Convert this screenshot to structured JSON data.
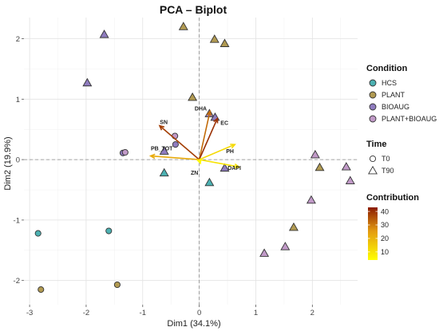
{
  "chart_data": {
    "type": "scatter",
    "title": "PCA – Biplot",
    "xlabel": "Dim1 (34.1%)",
    "ylabel": "Dim2 (19.9%)",
    "xlim": [
      -3.1,
      2.8
    ],
    "ylim": [
      -2.4,
      2.35
    ],
    "x_ticks": [
      "-3",
      "-2",
      "-1",
      "0",
      "1",
      "2"
    ],
    "y_ticks": [
      "-2",
      "-1",
      "0",
      "1",
      "2"
    ],
    "x_tick_values": [
      -3,
      -2,
      -1,
      0,
      1,
      2
    ],
    "y_tick_values": [
      -2,
      -1,
      0,
      1,
      2
    ],
    "grid": true,
    "legend_placement": "right",
    "condition_legend": {
      "title": "Condition",
      "items": [
        {
          "label": "HCS",
          "color": "#4cb1b2"
        },
        {
          "label": "PLANT",
          "color": "#b19a52"
        },
        {
          "label": "BIOAUG",
          "color": "#8f7cbf"
        },
        {
          "label": "PLANT+BIOAUG",
          "color": "#c19ac8"
        }
      ]
    },
    "time_legend": {
      "title": "Time",
      "items": [
        {
          "label": "T0",
          "shape": "circle"
        },
        {
          "label": "T90",
          "shape": "triangle"
        }
      ]
    },
    "contribution_legend": {
      "title": "Contribution",
      "ticks": [
        "10",
        "20",
        "30",
        "40"
      ],
      "tick_values": [
        10,
        20,
        30,
        40
      ],
      "range": [
        4,
        43
      ],
      "low_color": "#ffff00",
      "mid_color": "#e39b10",
      "high_color": "#8b1a00"
    },
    "points": [
      {
        "x": -2.85,
        "y": -1.22,
        "condition": "HCS",
        "time": "T0"
      },
      {
        "x": -1.6,
        "y": -1.18,
        "condition": "HCS",
        "time": "T0"
      },
      {
        "x": -0.62,
        "y": -0.22,
        "condition": "HCS",
        "time": "T90"
      },
      {
        "x": 0.18,
        "y": -0.38,
        "condition": "HCS",
        "time": "T90"
      },
      {
        "x": -2.8,
        "y": -2.15,
        "condition": "PLANT",
        "time": "T0"
      },
      {
        "x": -1.45,
        "y": -2.07,
        "condition": "PLANT",
        "time": "T0"
      },
      {
        "x": -0.28,
        "y": 2.2,
        "condition": "PLANT",
        "time": "T90"
      },
      {
        "x": 0.27,
        "y": 1.99,
        "condition": "PLANT",
        "time": "T90"
      },
      {
        "x": 0.45,
        "y": 1.92,
        "condition": "PLANT",
        "time": "T90"
      },
      {
        "x": -0.12,
        "y": 1.03,
        "condition": "PLANT",
        "time": "T90"
      },
      {
        "x": 1.67,
        "y": -1.12,
        "condition": "PLANT",
        "time": "T90"
      },
      {
        "x": 2.13,
        "y": -0.13,
        "condition": "PLANT",
        "time": "T90"
      },
      {
        "x": -1.35,
        "y": 0.11,
        "condition": "BIOAUG",
        "time": "T0"
      },
      {
        "x": -0.42,
        "y": 0.25,
        "condition": "BIOAUG",
        "time": "T0"
      },
      {
        "x": -1.68,
        "y": 2.07,
        "condition": "BIOAUG",
        "time": "T90"
      },
      {
        "x": -1.98,
        "y": 1.27,
        "condition": "BIOAUG",
        "time": "T90"
      },
      {
        "x": 0.18,
        "y": 0.76,
        "condition": "BIOAUG",
        "time": "T90"
      },
      {
        "x": 0.28,
        "y": 0.7,
        "condition": "BIOAUG",
        "time": "T90"
      },
      {
        "x": 0.45,
        "y": -0.14,
        "condition": "BIOAUG",
        "time": "T90"
      },
      {
        "x": -0.62,
        "y": 0.14,
        "condition": "BIOAUG",
        "time": "T90"
      },
      {
        "x": -1.31,
        "y": 0.12,
        "condition": "PLANT+BIOAUG",
        "time": "T0"
      },
      {
        "x": -0.43,
        "y": 0.39,
        "condition": "PLANT+BIOAUG",
        "time": "T0"
      },
      {
        "x": 2.05,
        "y": 0.08,
        "condition": "PLANT+BIOAUG",
        "time": "T90"
      },
      {
        "x": 2.6,
        "y": -0.12,
        "condition": "PLANT+BIOAUG",
        "time": "T90"
      },
      {
        "x": 2.67,
        "y": -0.35,
        "condition": "PLANT+BIOAUG",
        "time": "T90"
      },
      {
        "x": 1.98,
        "y": -0.67,
        "condition": "PLANT+BIOAUG",
        "time": "T90"
      },
      {
        "x": 1.52,
        "y": -1.44,
        "condition": "PLANT+BIOAUG",
        "time": "T90"
      },
      {
        "x": 1.15,
        "y": -1.55,
        "condition": "PLANT+BIOAUG",
        "time": "T90"
      }
    ],
    "variables": [
      {
        "name": "DHA",
        "x": 0.19,
        "y": 0.8,
        "contribution": 32
      },
      {
        "name": "EC",
        "x": 0.32,
        "y": 0.68,
        "contribution": 40
      },
      {
        "name": "SN",
        "x": -0.7,
        "y": 0.56,
        "contribution": 38
      },
      {
        "name": "PB_TOT",
        "x": -0.86,
        "y": 0.06,
        "contribution": 22
      },
      {
        "name": "PH",
        "x": 0.63,
        "y": 0.25,
        "contribution": 12
      },
      {
        "name": "DAPI",
        "x": 0.7,
        "y": -0.12,
        "contribution": 10
      },
      {
        "name": "ZN",
        "x": 0.02,
        "y": -0.06,
        "contribution": 5
      }
    ]
  }
}
